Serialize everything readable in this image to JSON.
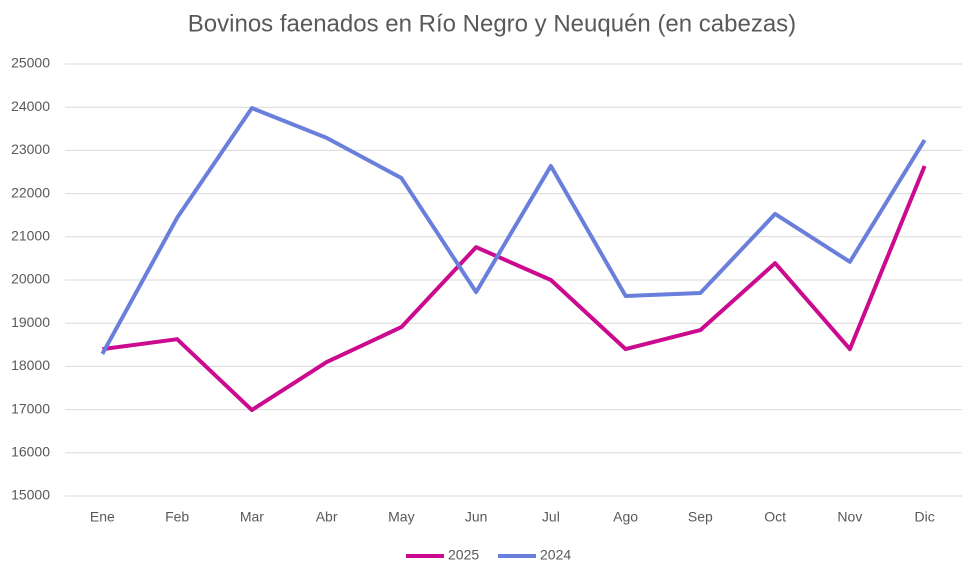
{
  "chart_data": {
    "type": "line",
    "title": "Bovinos faenados en Río Negro y Neuquén (en cabezas)",
    "categories": [
      "Ene",
      "Feb",
      "Mar",
      "Abr",
      "May",
      "Jun",
      "Jul",
      "Ago",
      "Sep",
      "Oct",
      "Nov",
      "Dic"
    ],
    "series": [
      {
        "name": "2025",
        "color": "#cc0a8f",
        "values": [
          18400,
          18630,
          16990,
          18100,
          18910,
          20760,
          20000,
          18400,
          18840,
          20390,
          18400,
          22640
        ]
      },
      {
        "name": "2024",
        "color": "#6a7fdb",
        "values": [
          18290,
          21440,
          23980,
          23290,
          22360,
          19720,
          22640,
          19630,
          19700,
          21530,
          20420,
          23240
        ]
      }
    ],
    "ylim": [
      15000,
      25000
    ],
    "yticks": [
      15000,
      16000,
      17000,
      18000,
      19000,
      20000,
      21000,
      22000,
      23000,
      24000,
      25000
    ],
    "grid": true,
    "legend": "bottom"
  }
}
